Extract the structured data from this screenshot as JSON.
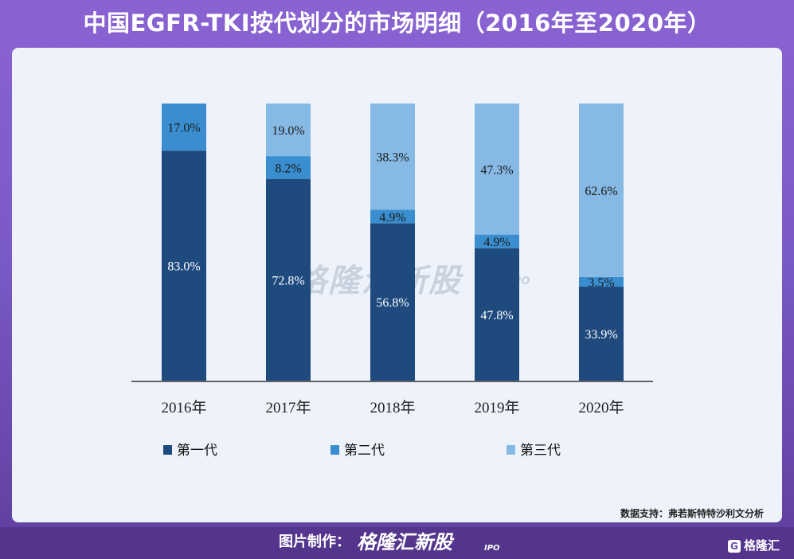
{
  "title": "中国EGFR-TKI按代划分的市场明细（2016年至2020年）",
  "source": "数据支持：弗若斯特特沙利文分析",
  "footer": {
    "credit_label": "图片制作：",
    "brand": "格隆汇新股",
    "brand_sub": "IPO",
    "mini_brand": "格隆汇",
    "mini_brand_icon": "G"
  },
  "watermark": {
    "text": "格隆汇新股",
    "sub": "IPO"
  },
  "colors": {
    "gen1": "#1f4a7e",
    "gen2": "#3a8ecf",
    "gen3": "#86b9e4",
    "axis": "#333333"
  },
  "chart_data": {
    "type": "bar",
    "stacked": true,
    "categories": [
      "2016年",
      "2017年",
      "2018年",
      "2019年",
      "2020年"
    ],
    "series": [
      {
        "name": "第一代",
        "values": [
          83.0,
          72.8,
          56.8,
          47.8,
          33.9
        ],
        "labels": [
          "83.0%",
          "72.8%",
          "56.8%",
          "47.8%",
          "33.9%"
        ]
      },
      {
        "name": "第二代",
        "values": [
          17.0,
          8.2,
          4.9,
          4.9,
          3.5
        ],
        "labels": [
          "17.0%",
          "8.2%",
          "4.9%",
          "4.9%",
          "3.5%"
        ]
      },
      {
        "name": "第三代",
        "values": [
          0.0,
          19.0,
          38.3,
          47.3,
          62.6
        ],
        "labels": [
          "",
          "19.0%",
          "38.3%",
          "47.3%",
          "62.6%"
        ]
      }
    ],
    "ylim": [
      0,
      100
    ],
    "legend_position": "bottom",
    "grid": false
  }
}
